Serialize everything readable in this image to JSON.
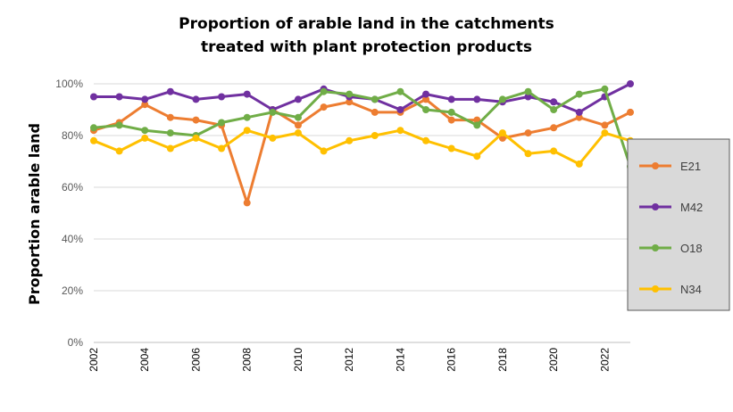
{
  "chart_data": {
    "type": "line",
    "title_line1": "Proportion of  arable land in the catchments",
    "title_line2": "treated with plant protection products",
    "xlabel": "",
    "ylabel": "Proportion arable land",
    "x": [
      2002,
      2003,
      2004,
      2005,
      2006,
      2007,
      2008,
      2009,
      2010,
      2011,
      2012,
      2013,
      2014,
      2015,
      2016,
      2017,
      2018,
      2019,
      2020,
      2021,
      2022,
      2023
    ],
    "x_tick_labels": [
      "2002",
      "2004",
      "2006",
      "2008",
      "2010",
      "2012",
      "2014",
      "2016",
      "2018",
      "2020",
      "2022"
    ],
    "y_tick_labels": [
      "0%",
      "20%",
      "40%",
      "60%",
      "80%",
      "100%"
    ],
    "ylim": [
      0,
      100
    ],
    "grid": "horizontal",
    "legend_position": "right",
    "series": [
      {
        "name": "E21",
        "color": "#ED7D31",
        "values": [
          82,
          85,
          92,
          87,
          86,
          84,
          54,
          90,
          84,
          91,
          93,
          89,
          89,
          94,
          86,
          86,
          79,
          81,
          83,
          87,
          84,
          89
        ]
      },
      {
        "name": "M42",
        "color": "#7030A0",
        "values": [
          95,
          95,
          94,
          97,
          94,
          95,
          96,
          90,
          94,
          98,
          95,
          94,
          90,
          96,
          94,
          94,
          93,
          95,
          93,
          89,
          95,
          100
        ]
      },
      {
        "name": "O18",
        "color": "#70AD47",
        "values": [
          83,
          84,
          82,
          81,
          80,
          85,
          87,
          89,
          87,
          97,
          96,
          94,
          97,
          90,
          89,
          84,
          94,
          97,
          90,
          96,
          98,
          68
        ]
      },
      {
        "name": "N34",
        "color": "#FFC000",
        "values": [
          78,
          74,
          79,
          75,
          79,
          75,
          82,
          79,
          81,
          74,
          78,
          80,
          82,
          78,
          75,
          72,
          81,
          73,
          74,
          69,
          81,
          78
        ]
      }
    ]
  }
}
